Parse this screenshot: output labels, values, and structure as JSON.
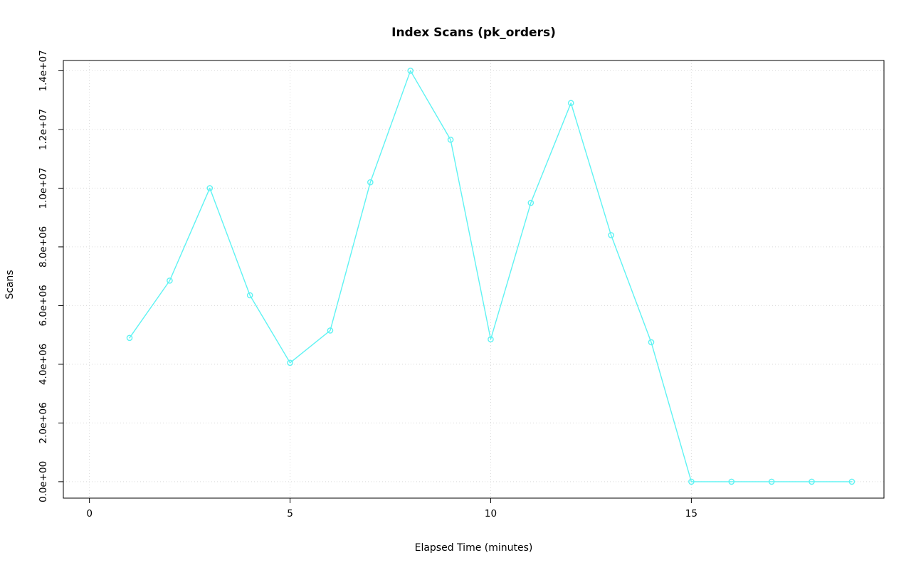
{
  "chart_data": {
    "type": "line",
    "title": "Index Scans (pk_orders)",
    "xlabel": "Elapsed Time (minutes)",
    "ylabel": "Scans",
    "x": [
      1,
      2,
      3,
      4,
      5,
      6,
      7,
      8,
      9,
      10,
      11,
      12,
      13,
      14,
      15,
      16,
      17,
      18,
      19
    ],
    "values": [
      4900000,
      6850000,
      10000000,
      6350000,
      4050000,
      5150000,
      10200000,
      14000000,
      11650000,
      4850000,
      9500000,
      12900000,
      8400000,
      4750000,
      0,
      0,
      0,
      0,
      0
    ],
    "x_ticks": [
      0,
      5,
      10,
      15
    ],
    "x_tick_labels": [
      "0",
      "5",
      "10",
      "15"
    ],
    "y_ticks": [
      0,
      2000000,
      4000000,
      6000000,
      8000000,
      10000000,
      12000000,
      14000000
    ],
    "y_tick_labels": [
      "0.0e+00",
      "2.0e+06",
      "4.0e+06",
      "6.0e+06",
      "8.0e+06",
      "1.0e+07",
      "1.2e+07",
      "1.4e+07"
    ],
    "xlim": [
      -0.65,
      19.8
    ],
    "ylim": [
      -560000,
      14350000
    ],
    "grid": true,
    "grid_style": "dotted",
    "legend_position": "none",
    "marker": "open-circle",
    "series_color": "#5FF3F3",
    "grid_color": "#D9D9D9",
    "axis_color": "#000000",
    "background_color": "#FFFFFF"
  }
}
